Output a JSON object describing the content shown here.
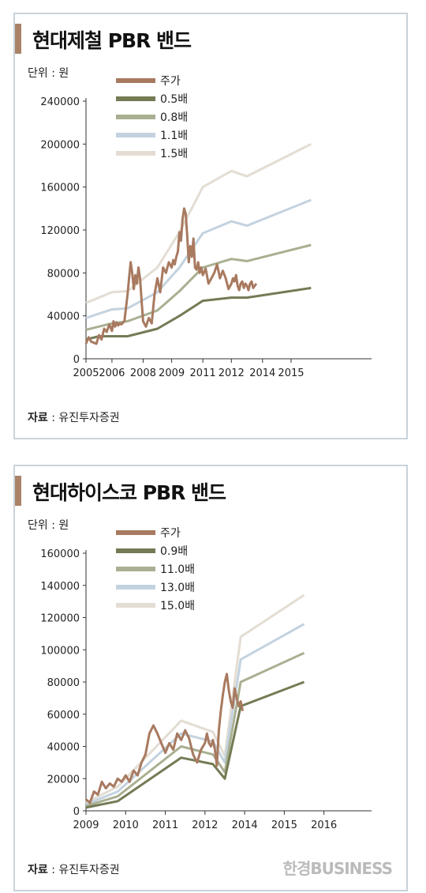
{
  "watermark": "한경BUSINESS",
  "chart_data": [
    {
      "type": "line",
      "title": "현대제철 PBR 밴드",
      "unit": "단위 : 원",
      "source_label": "자료",
      "source_text": " : 유진투자증권",
      "xlim": [
        2005,
        2016
      ],
      "ylim": [
        0,
        240000
      ],
      "x_ticks": [
        2005,
        2006,
        2008,
        2009,
        2011,
        2012,
        2014,
        2015
      ],
      "x_tick_pos": [
        2005,
        2006,
        2007.2,
        2008.3,
        2009.5,
        2010.6,
        2011.8,
        2012.9
      ],
      "y_ticks": [
        0,
        40000,
        80000,
        120000,
        160000,
        200000,
        240000
      ],
      "series": [
        {
          "name": "주가",
          "color": "#a87a60",
          "width": 3,
          "x": [
            2005.0,
            2005.1,
            2005.2,
            2005.4,
            2005.5,
            2005.6,
            2005.7,
            2005.8,
            2005.9,
            2006.0,
            2006.1,
            2006.2,
            2006.3,
            2006.4,
            2006.5,
            2006.6,
            2006.8,
            2007.0,
            2007.1,
            2007.2,
            2007.3,
            2007.4,
            2007.5,
            2007.6,
            2007.7,
            2007.8,
            2007.9,
            2008.0,
            2008.1,
            2008.2,
            2008.3,
            2008.4,
            2008.5,
            2008.6,
            2008.7,
            2008.8,
            2008.9,
            2009.0,
            2009.1,
            2009.2,
            2009.3,
            2009.4,
            2009.5,
            2009.6,
            2009.7,
            2009.8,
            2009.9,
            2010.0,
            2010.1,
            2010.2,
            2010.3,
            2010.4,
            2010.5,
            2010.6,
            2010.7,
            2010.8,
            2010.9,
            2011.0,
            2011.1,
            2011.2,
            2011.3,
            2011.4,
            2011.5,
            2011.6,
            2011.7,
            2011.8,
            2011.9,
            2012.0,
            2012.1,
            2012.2,
            2012.3,
            2012.4,
            2012.5,
            2012.6,
            2012.7,
            2012.8,
            2012.9,
            2013.0,
            2013.1,
            2013.2,
            2013.3,
            2013.4,
            2013.5,
            2013.6
          ],
          "y": [
            14000,
            20000,
            16000,
            14000,
            22000,
            18000,
            28000,
            25000,
            32000,
            26000,
            35000,
            30000,
            34000,
            31000,
            33000,
            32000,
            35000,
            60000,
            75000,
            90000,
            80000,
            65000,
            78000,
            70000,
            85000,
            75000,
            55000,
            35000,
            30000,
            38000,
            33000,
            60000,
            75000,
            62000,
            85000,
            80000,
            90000,
            85000,
            92000,
            88000,
            95000,
            100000,
            118000,
            110000,
            130000,
            140000,
            135000,
            115000,
            90000,
            105000,
            95000,
            112000,
            85000,
            83000,
            90000,
            80000,
            85000,
            78000,
            84000,
            70000,
            75000,
            80000,
            88000,
            75000,
            82000,
            75000,
            65000,
            70000,
            75000,
            72000,
            78000,
            68000,
            64000,
            70000,
            72000,
            66000,
            70000,
            68000,
            64000,
            70000,
            72000,
            66000,
            68000,
            70000
          ]
        },
        {
          "name": "0.5배",
          "color": "#747b55",
          "width": 3,
          "x": [
            2005,
            2005.5,
            2007,
            2008.5,
            2009.5,
            2011,
            2012,
            2013,
            2015.7
          ],
          "y": [
            18000,
            21000,
            21000,
            28000,
            40000,
            54000,
            57000,
            57000,
            66000
          ]
        },
        {
          "name": "0.8배",
          "color": "#a9b091",
          "width": 3,
          "x": [
            2005,
            2006,
            2007,
            2008.5,
            2009.5,
            2011,
            2012,
            2013,
            2015.7
          ],
          "y": [
            27000,
            33000,
            35000,
            45000,
            63000,
            85000,
            93000,
            91000,
            106000
          ]
        },
        {
          "name": "1.1배",
          "color": "#c3d2df",
          "width": 3,
          "x": [
            2005,
            2006,
            2007,
            2008.5,
            2009.5,
            2011,
            2012,
            2013,
            2015.7
          ],
          "y": [
            38000,
            46000,
            47000,
            62000,
            85000,
            117000,
            128000,
            124000,
            148000
          ]
        },
        {
          "name": "1.5배",
          "color": "#e3ddd3",
          "width": 3,
          "x": [
            2005,
            2006,
            2007,
            2008.5,
            2009.5,
            2011,
            2012,
            2013,
            2015.7
          ],
          "y": [
            52000,
            62000,
            63000,
            85000,
            118000,
            160000,
            175000,
            170000,
            200000
          ]
        }
      ]
    },
    {
      "type": "line",
      "title": "현대하이스코 PBR 밴드",
      "unit": "단위 : 원",
      "source_label": "자료",
      "source_text": " : 유진투자증권",
      "xlim": [
        2009,
        2016.2
      ],
      "ylim": [
        0,
        160000
      ],
      "x_ticks": [
        2009,
        2010,
        2011,
        2012,
        2014,
        2015,
        2016
      ],
      "x_tick_pos": [
        2009,
        2010,
        2011,
        2012,
        2013,
        2014,
        2015
      ],
      "y_ticks": [
        0,
        20000,
        40000,
        60000,
        80000,
        100000,
        120000,
        140000,
        160000
      ],
      "series": [
        {
          "name": "주가",
          "color": "#a87a60",
          "width": 3,
          "x": [
            2009.0,
            2009.1,
            2009.2,
            2009.3,
            2009.4,
            2009.5,
            2009.6,
            2009.7,
            2009.8,
            2009.9,
            2010.0,
            2010.1,
            2010.2,
            2010.3,
            2010.4,
            2010.5,
            2010.6,
            2010.7,
            2010.8,
            2010.9,
            2011.0,
            2011.1,
            2011.2,
            2011.3,
            2011.4,
            2011.5,
            2011.6,
            2011.7,
            2011.8,
            2011.9,
            2012.0,
            2012.1,
            2012.2,
            2012.3,
            2012.4,
            2012.5,
            2012.6,
            2012.7,
            2012.8,
            2012.9,
            2013.0,
            2013.1,
            2013.2,
            2013.3,
            2013.4,
            2013.5,
            2013.6,
            2013.7,
            2013.8,
            2013.9
          ],
          "y": [
            7000,
            5000,
            12000,
            10000,
            18000,
            14000,
            17000,
            15000,
            20000,
            18000,
            22000,
            18000,
            25000,
            22000,
            30000,
            35000,
            48000,
            53000,
            48000,
            42000,
            36000,
            42000,
            38000,
            48000,
            44000,
            50000,
            45000,
            35000,
            30000,
            38000,
            42000,
            48000,
            42000,
            40000,
            44000,
            38000,
            28000,
            50000,
            62000,
            72000,
            80000,
            85000,
            75000,
            68000,
            64000,
            76000,
            70000,
            65000,
            68000,
            62000
          ]
        },
        {
          "name": "0.9배",
          "color": "#747b55",
          "width": 3,
          "x": [
            2009,
            2009.8,
            2011.4,
            2012.4,
            2013,
            2013.8,
            2015.5
          ],
          "y": [
            2000,
            6000,
            33000,
            29000,
            20000,
            65000,
            80000
          ]
        },
        {
          "name": "11.0배",
          "color": "#a9b091",
          "width": 3,
          "x": [
            2009,
            2009.8,
            2011.4,
            2012.4,
            2013,
            2013.8,
            2015.5
          ],
          "y": [
            3000,
            9000,
            40000,
            35000,
            24000,
            80000,
            98000
          ]
        },
        {
          "name": "13.0배",
          "color": "#c3d2df",
          "width": 3,
          "x": [
            2009,
            2009.8,
            2011.4,
            2012.4,
            2013,
            2013.8,
            2015.5
          ],
          "y": [
            4000,
            12000,
            48000,
            43000,
            30000,
            94000,
            116000
          ]
        },
        {
          "name": "15.0배",
          "color": "#e3ddd3",
          "width": 3,
          "x": [
            2009,
            2009.8,
            2011.4,
            2012.4,
            2013,
            2013.8,
            2015.5
          ],
          "y": [
            5000,
            15000,
            56000,
            49000,
            34000,
            108000,
            134000
          ]
        }
      ]
    }
  ]
}
